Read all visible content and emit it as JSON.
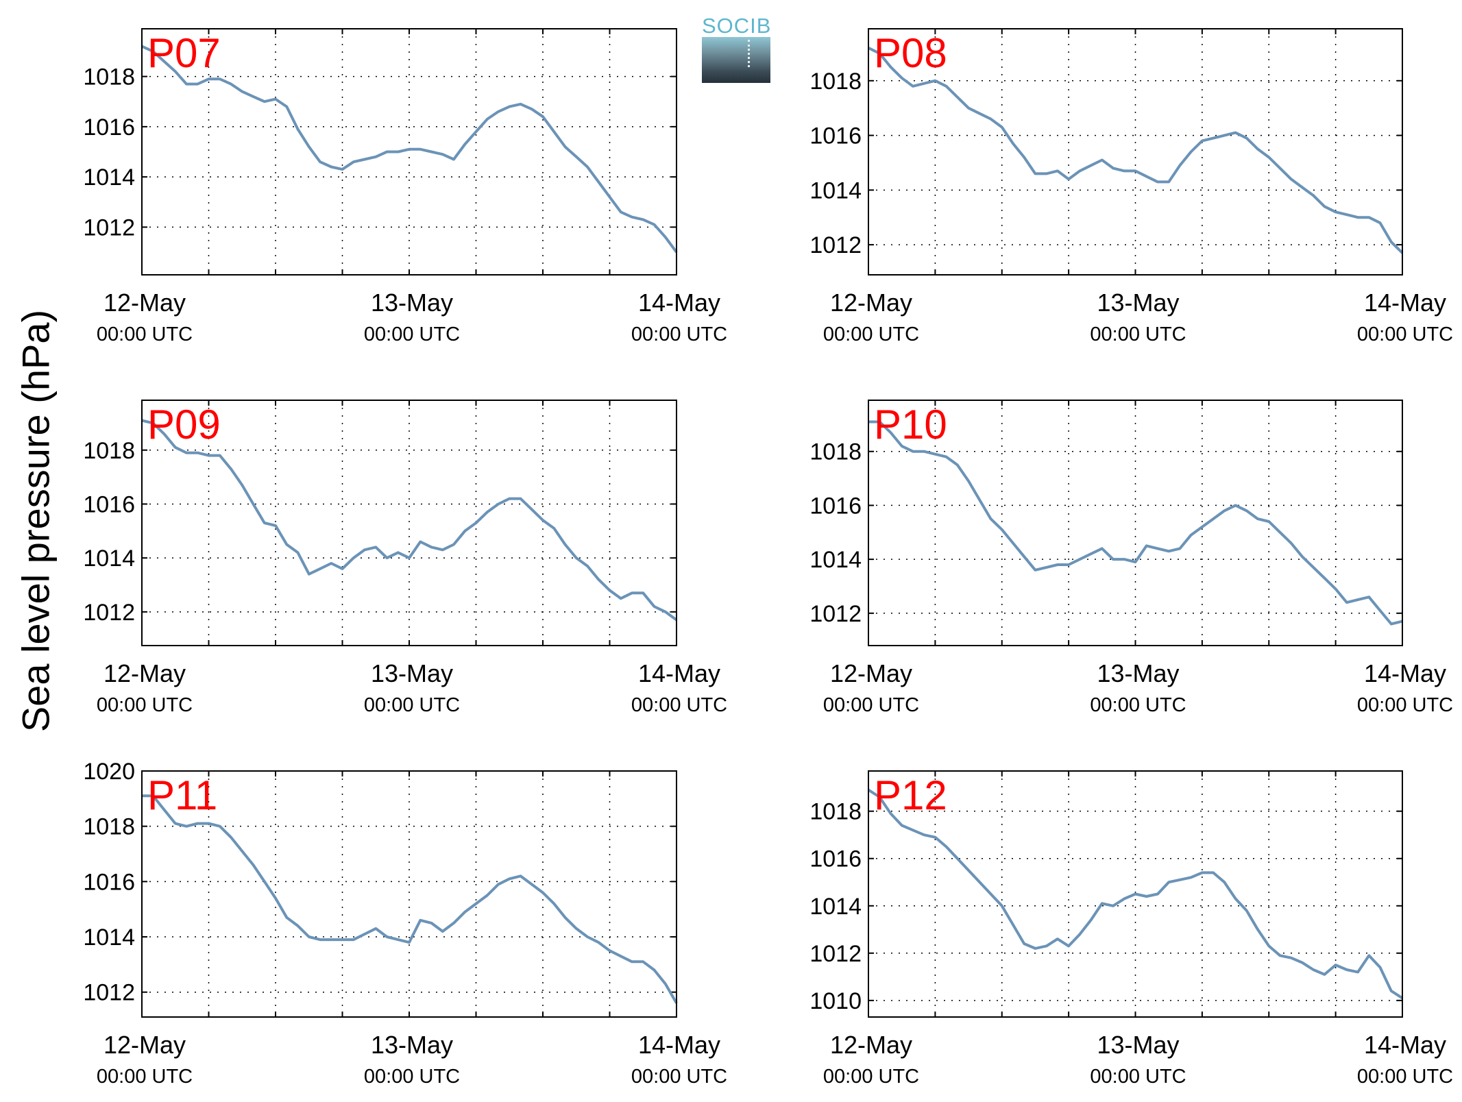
{
  "figure": {
    "ylabel": "Sea level pressure (hPa)",
    "logo_text": "SOCIB",
    "line_color": "#6b93b7",
    "label_color": "#ff0000"
  },
  "chart_data": [
    {
      "type": "line",
      "panel": "P07",
      "x_range": [
        0,
        48
      ],
      "ylim": [
        1010.1,
        1019.9
      ],
      "yticks": [
        1012,
        1014,
        1016,
        1018
      ],
      "xticks": [
        0,
        24,
        48
      ],
      "xtick_labels": [
        [
          "12-May",
          "00:00 UTC"
        ],
        [
          "13-May",
          "00:00 UTC"
        ],
        [
          "14-May",
          "00:00 UTC"
        ]
      ],
      "x_grid_hours": [
        6,
        12,
        18,
        24,
        30,
        36,
        42
      ],
      "grid": true,
      "series": [
        {
          "x": [
            0,
            1,
            2,
            3,
            4,
            5,
            6,
            7,
            8,
            9,
            10,
            11,
            12,
            13,
            14,
            15,
            16,
            17,
            18,
            19,
            20,
            21,
            22,
            23,
            24,
            25,
            26,
            27,
            28,
            29,
            30,
            31,
            32,
            33,
            34,
            35,
            36,
            37,
            38,
            39,
            40,
            41,
            42,
            43,
            44,
            45,
            46,
            47,
            48
          ],
          "y": [
            1019.2,
            1019.0,
            1018.6,
            1018.2,
            1017.7,
            1017.7,
            1017.9,
            1017.9,
            1017.7,
            1017.4,
            1017.2,
            1017.0,
            1017.1,
            1016.8,
            1015.9,
            1015.2,
            1014.6,
            1014.4,
            1014.3,
            1014.6,
            1014.7,
            1014.8,
            1015.0,
            1015.0,
            1015.1,
            1015.1,
            1015.0,
            1014.9,
            1014.7,
            1015.3,
            1015.8,
            1016.3,
            1016.6,
            1016.8,
            1016.9,
            1016.7,
            1016.4,
            1015.8,
            1015.2,
            1014.8,
            1014.4,
            1013.8,
            1013.2,
            1012.6,
            1012.4,
            1012.3,
            1012.1,
            1011.6,
            1011.0
          ]
        }
      ]
    },
    {
      "type": "line",
      "panel": "P08",
      "x_range": [
        0,
        48
      ],
      "ylim": [
        1010.9,
        1019.9
      ],
      "yticks": [
        1012,
        1014,
        1016,
        1018
      ],
      "xticks": [
        0,
        24,
        48
      ],
      "xtick_labels": [
        [
          "12-May",
          "00:00 UTC"
        ],
        [
          "13-May",
          "00:00 UTC"
        ],
        [
          "14-May",
          "00:00 UTC"
        ]
      ],
      "x_grid_hours": [
        6,
        12,
        18,
        24,
        30,
        36,
        42
      ],
      "grid": true,
      "series": [
        {
          "x": [
            0,
            1,
            2,
            3,
            4,
            5,
            6,
            7,
            8,
            9,
            10,
            11,
            12,
            13,
            14,
            15,
            16,
            17,
            18,
            19,
            20,
            21,
            22,
            23,
            24,
            25,
            26,
            27,
            28,
            29,
            30,
            31,
            32,
            33,
            34,
            35,
            36,
            37,
            38,
            39,
            40,
            41,
            42,
            43,
            44,
            45,
            46,
            47,
            48
          ],
          "y": [
            1019.2,
            1019.0,
            1018.5,
            1018.1,
            1017.8,
            1017.9,
            1018.0,
            1017.8,
            1017.4,
            1017.0,
            1016.8,
            1016.6,
            1016.3,
            1015.7,
            1015.2,
            1014.6,
            1014.6,
            1014.7,
            1014.4,
            1014.7,
            1014.9,
            1015.1,
            1014.8,
            1014.7,
            1014.7,
            1014.5,
            1014.3,
            1014.3,
            1014.9,
            1015.4,
            1015.8,
            1015.9,
            1016.0,
            1016.1,
            1015.9,
            1015.5,
            1015.2,
            1014.8,
            1014.4,
            1014.1,
            1013.8,
            1013.4,
            1013.2,
            1013.1,
            1013.0,
            1013.0,
            1012.8,
            1012.1,
            1011.7
          ]
        }
      ]
    },
    {
      "type": "line",
      "panel": "P09",
      "x_range": [
        0,
        48
      ],
      "ylim": [
        1010.75,
        1019.85
      ],
      "yticks": [
        1012,
        1014,
        1016,
        1018
      ],
      "xticks": [
        0,
        24,
        48
      ],
      "xtick_labels": [
        [
          "12-May",
          "00:00 UTC"
        ],
        [
          "13-May",
          "00:00 UTC"
        ],
        [
          "14-May",
          "00:00 UTC"
        ]
      ],
      "x_grid_hours": [
        6,
        12,
        18,
        24,
        30,
        36,
        42
      ],
      "grid": true,
      "series": [
        {
          "x": [
            0,
            1,
            2,
            3,
            4,
            5,
            6,
            7,
            8,
            9,
            10,
            11,
            12,
            13,
            14,
            15,
            16,
            17,
            18,
            19,
            20,
            21,
            22,
            23,
            24,
            25,
            26,
            27,
            28,
            29,
            30,
            31,
            32,
            33,
            34,
            35,
            36,
            37,
            38,
            39,
            40,
            41,
            42,
            43,
            44,
            45,
            46,
            47,
            48
          ],
          "y": [
            1019.1,
            1019.0,
            1018.6,
            1018.1,
            1017.9,
            1017.9,
            1017.8,
            1017.8,
            1017.3,
            1016.7,
            1016.0,
            1015.3,
            1015.2,
            1014.5,
            1014.2,
            1013.4,
            1013.6,
            1013.8,
            1013.6,
            1014.0,
            1014.3,
            1014.4,
            1014.0,
            1014.2,
            1014.0,
            1014.6,
            1014.4,
            1014.3,
            1014.5,
            1015.0,
            1015.3,
            1015.7,
            1016.0,
            1016.2,
            1016.2,
            1015.8,
            1015.4,
            1015.1,
            1014.5,
            1014.0,
            1013.7,
            1013.2,
            1012.8,
            1012.5,
            1012.7,
            1012.7,
            1012.2,
            1012.0,
            1011.7
          ]
        }
      ]
    },
    {
      "type": "line",
      "panel": "P10",
      "x_range": [
        0,
        48
      ],
      "ylim": [
        1010.8,
        1019.9
      ],
      "yticks": [
        1012,
        1014,
        1016,
        1018
      ],
      "xticks": [
        0,
        24,
        48
      ],
      "xtick_labels": [
        [
          "12-May",
          "00:00 UTC"
        ],
        [
          "13-May",
          "00:00 UTC"
        ],
        [
          "14-May",
          "00:00 UTC"
        ]
      ],
      "x_grid_hours": [
        6,
        12,
        18,
        24,
        30,
        36,
        42
      ],
      "grid": true,
      "series": [
        {
          "x": [
            0,
            1,
            2,
            3,
            4,
            5,
            6,
            7,
            8,
            9,
            10,
            11,
            12,
            13,
            14,
            15,
            16,
            17,
            18,
            19,
            20,
            21,
            22,
            23,
            24,
            25,
            26,
            27,
            28,
            29,
            30,
            31,
            32,
            33,
            34,
            35,
            36,
            37,
            38,
            39,
            40,
            41,
            42,
            43,
            44,
            45,
            46,
            47,
            48
          ],
          "y": [
            1019.1,
            1019.1,
            1018.7,
            1018.2,
            1018.0,
            1018.0,
            1017.9,
            1017.8,
            1017.5,
            1016.9,
            1016.2,
            1015.5,
            1015.1,
            1014.6,
            1014.1,
            1013.6,
            1013.7,
            1013.8,
            1013.8,
            1014.0,
            1014.2,
            1014.4,
            1014.0,
            1014.0,
            1013.9,
            1014.5,
            1014.4,
            1014.3,
            1014.4,
            1014.9,
            1015.2,
            1015.5,
            1015.8,
            1016.0,
            1015.8,
            1015.5,
            1015.4,
            1015.0,
            1014.6,
            1014.1,
            1013.7,
            1013.3,
            1012.9,
            1012.4,
            1012.5,
            1012.6,
            1012.1,
            1011.6,
            1011.7
          ]
        }
      ]
    },
    {
      "type": "line",
      "panel": "P11",
      "x_range": [
        0,
        48
      ],
      "ylim": [
        1011.1,
        1020.0
      ],
      "yticks": [
        1012,
        1014,
        1016,
        1018,
        1020
      ],
      "xticks": [
        0,
        24,
        48
      ],
      "xtick_labels": [
        [
          "12-May",
          "00:00 UTC"
        ],
        [
          "13-May",
          "00:00 UTC"
        ],
        [
          "14-May",
          "00:00 UTC"
        ]
      ],
      "x_grid_hours": [
        6,
        12,
        18,
        24,
        30,
        36,
        42
      ],
      "grid": true,
      "series": [
        {
          "x": [
            0,
            1,
            2,
            3,
            4,
            5,
            6,
            7,
            8,
            9,
            10,
            11,
            12,
            13,
            14,
            15,
            16,
            17,
            18,
            19,
            20,
            21,
            22,
            23,
            24,
            25,
            26,
            27,
            28,
            29,
            30,
            31,
            32,
            33,
            34,
            35,
            36,
            37,
            38,
            39,
            40,
            41,
            42,
            43,
            44,
            45,
            46,
            47,
            48
          ],
          "y": [
            1019.1,
            1019.1,
            1018.6,
            1018.1,
            1018.0,
            1018.1,
            1018.1,
            1018.0,
            1017.6,
            1017.1,
            1016.6,
            1016.0,
            1015.4,
            1014.7,
            1014.4,
            1014.0,
            1013.9,
            1013.9,
            1013.9,
            1013.9,
            1014.1,
            1014.3,
            1014.0,
            1013.9,
            1013.8,
            1014.6,
            1014.5,
            1014.2,
            1014.5,
            1014.9,
            1015.2,
            1015.5,
            1015.9,
            1016.1,
            1016.2,
            1015.9,
            1015.6,
            1015.2,
            1014.7,
            1014.3,
            1014.0,
            1013.8,
            1013.5,
            1013.3,
            1013.1,
            1013.1,
            1012.8,
            1012.3,
            1011.6
          ]
        }
      ]
    },
    {
      "type": "line",
      "panel": "P12",
      "x_range": [
        0,
        48
      ],
      "ylim": [
        1009.3,
        1019.7
      ],
      "yticks": [
        1010,
        1012,
        1014,
        1016,
        1018
      ],
      "xticks": [
        0,
        24,
        48
      ],
      "xtick_labels": [
        [
          "12-May",
          "00:00 UTC"
        ],
        [
          "13-May",
          "00:00 UTC"
        ],
        [
          "14-May",
          "00:00 UTC"
        ]
      ],
      "x_grid_hours": [
        6,
        12,
        18,
        24,
        30,
        36,
        42
      ],
      "grid": true,
      "series": [
        {
          "x": [
            0,
            1,
            2,
            3,
            4,
            5,
            6,
            7,
            8,
            9,
            10,
            11,
            12,
            13,
            14,
            15,
            16,
            17,
            18,
            19,
            20,
            21,
            22,
            23,
            24,
            25,
            26,
            27,
            28,
            29,
            30,
            31,
            32,
            33,
            34,
            35,
            36,
            37,
            38,
            39,
            40,
            41,
            42,
            43,
            44,
            45,
            46,
            47,
            48
          ],
          "y": [
            1018.9,
            1018.6,
            1017.9,
            1017.4,
            1017.2,
            1017.0,
            1016.9,
            1016.5,
            1016.0,
            1015.5,
            1015.0,
            1014.5,
            1014.0,
            1013.2,
            1012.4,
            1012.2,
            1012.3,
            1012.6,
            1012.3,
            1012.8,
            1013.4,
            1014.1,
            1014.0,
            1014.3,
            1014.5,
            1014.4,
            1014.5,
            1015.0,
            1015.1,
            1015.2,
            1015.4,
            1015.4,
            1015.0,
            1014.3,
            1013.8,
            1013.0,
            1012.3,
            1011.9,
            1011.8,
            1011.6,
            1011.3,
            1011.1,
            1011.5,
            1011.3,
            1011.2,
            1011.9,
            1011.4,
            1010.4,
            1010.1
          ]
        }
      ]
    }
  ]
}
